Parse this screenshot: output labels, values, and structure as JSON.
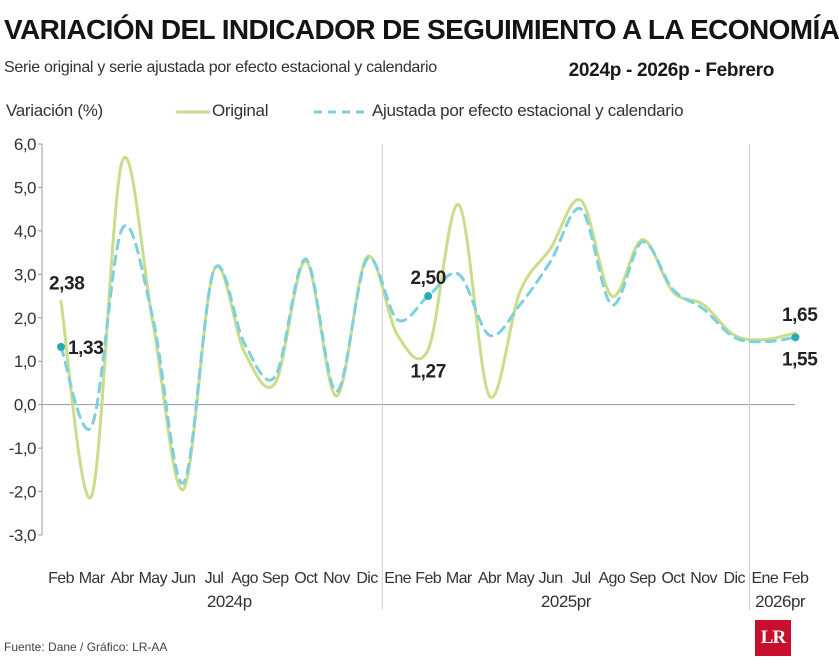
{
  "header": {
    "title": "VARIACIÓN DEL INDICADOR DE SEGUIMIENTO A LA ECONOMÍA",
    "subtitle": "Serie original y serie ajustada por efecto estacional y calendario",
    "period": "2024p - 2026p - Febrero"
  },
  "footer": {
    "source": "Fuente: Dane / Gráfico: LR-AA",
    "logo_text": "LR"
  },
  "colors": {
    "original": "#c9dd8a",
    "adjusted": "#7fd0de",
    "marker": "#2aa8b3",
    "axis": "#9a9a9a",
    "grid_divider": "#cfcfcf"
  },
  "chart_data": {
    "type": "line",
    "ylabel": "Variación (%)",
    "ylim": [
      -3.0,
      6.0
    ],
    "yticks": [
      "6,0",
      "5,0",
      "4,0",
      "3,0",
      "2,0",
      "1,0",
      "0,0",
      "-1,0",
      "-2,0",
      "-3,0"
    ],
    "categories": [
      "Feb",
      "Mar",
      "Abr",
      "May",
      "Jun",
      "Jul",
      "Ago",
      "Sep",
      "Oct",
      "Nov",
      "Dic",
      "Ene",
      "Feb",
      "Mar",
      "Abr",
      "May",
      "Jun",
      "Jul",
      "Ago",
      "Sep",
      "Oct",
      "Nov",
      "Dic",
      "Ene",
      "Feb"
    ],
    "year_labels": [
      {
        "label": "2024p",
        "index": 5.5
      },
      {
        "label": "2025pr",
        "index": 16.5
      },
      {
        "label": "2026pr",
        "index": 23.5
      }
    ],
    "year_dividers": [
      10.5,
      22.5
    ],
    "series": [
      {
        "name": "Original",
        "values": [
          2.38,
          -2.1,
          5.6,
          1.9,
          -1.95,
          3.1,
          1.2,
          0.5,
          3.3,
          0.2,
          3.4,
          1.6,
          1.27,
          4.6,
          0.2,
          2.6,
          3.6,
          4.7,
          2.5,
          3.8,
          2.6,
          2.3,
          1.6,
          1.5,
          1.65
        ]
      },
      {
        "name": "Ajustada por efecto estacional y calendario",
        "values": [
          1.33,
          -0.5,
          4.05,
          2.0,
          -1.8,
          3.1,
          1.4,
          0.65,
          3.35,
          0.3,
          3.35,
          1.95,
          2.5,
          3.0,
          1.6,
          2.3,
          3.3,
          4.5,
          2.3,
          3.75,
          2.65,
          2.2,
          1.55,
          1.45,
          1.55
        ]
      }
    ],
    "annotations": [
      {
        "text": "2,38",
        "series": 0,
        "index": 0,
        "pos": "above"
      },
      {
        "text": "1,33",
        "series": 1,
        "index": 0,
        "pos": "right"
      },
      {
        "text": "1,27",
        "series": 0,
        "index": 12,
        "pos": "below"
      },
      {
        "text": "2,50",
        "series": 1,
        "index": 12,
        "pos": "above"
      },
      {
        "text": "1,65",
        "series": 0,
        "index": 24,
        "pos": "above"
      },
      {
        "text": "1,55",
        "series": 1,
        "index": 24,
        "pos": "below"
      }
    ],
    "markers": [
      {
        "series": 1,
        "index": 0
      },
      {
        "series": 1,
        "index": 12
      },
      {
        "series": 1,
        "index": 24
      }
    ],
    "grid": false,
    "legend": "top"
  }
}
